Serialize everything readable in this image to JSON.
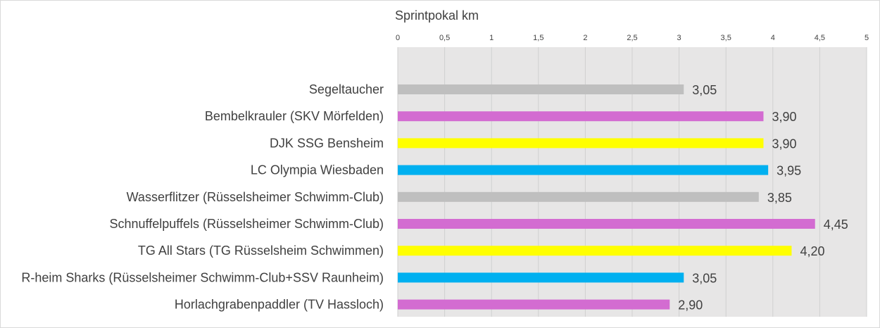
{
  "chart_data": {
    "type": "bar",
    "orientation": "horizontal",
    "title": "Sprintpokal km",
    "xlabel": "",
    "ylabel": "",
    "xlim": [
      0,
      5
    ],
    "x_ticks": [
      "0",
      "0,5",
      "1",
      "1,5",
      "2",
      "2,5",
      "3",
      "3,5",
      "4",
      "4,5",
      "5"
    ],
    "x_tick_values": [
      0,
      0.5,
      1,
      1.5,
      2,
      2.5,
      3,
      3.5,
      4,
      4.5,
      5
    ],
    "axis_position": "top",
    "grid": true,
    "plot_background": "#e7e6e6",
    "categories": [
      "Segeltaucher",
      "Bembelkrauler (SKV Mörfelden)",
      "DJK SSG Bensheim",
      "LC Olympia Wiesbaden",
      "Wasserflitzer (Rüsselsheimer Schwimm-Club)",
      "Schnuffelpuffels  (Rüsselsheimer Schwimm-Club)",
      "TG All Stars (TG Rüsselsheim Schwimmen)",
      "R-heim Sharks (Rüsselsheimer Schwimm-Club+SSV Raunheim)",
      "Horlachgrabenpaddler (TV Hassloch)"
    ],
    "values": [
      3.05,
      3.9,
      3.9,
      3.95,
      3.85,
      4.45,
      4.2,
      3.05,
      2.9
    ],
    "value_labels": [
      "3,05",
      "3,90",
      "3,90",
      "3,95",
      "3,85",
      "4,45",
      "4,20",
      "3,05",
      "2,90"
    ],
    "colors": [
      "#bfbfbf",
      "#d36cd1",
      "#ffff00",
      "#00b0f0",
      "#bfbfbf",
      "#d36cd1",
      "#ffff00",
      "#00b0f0",
      "#d36cd1"
    ]
  }
}
